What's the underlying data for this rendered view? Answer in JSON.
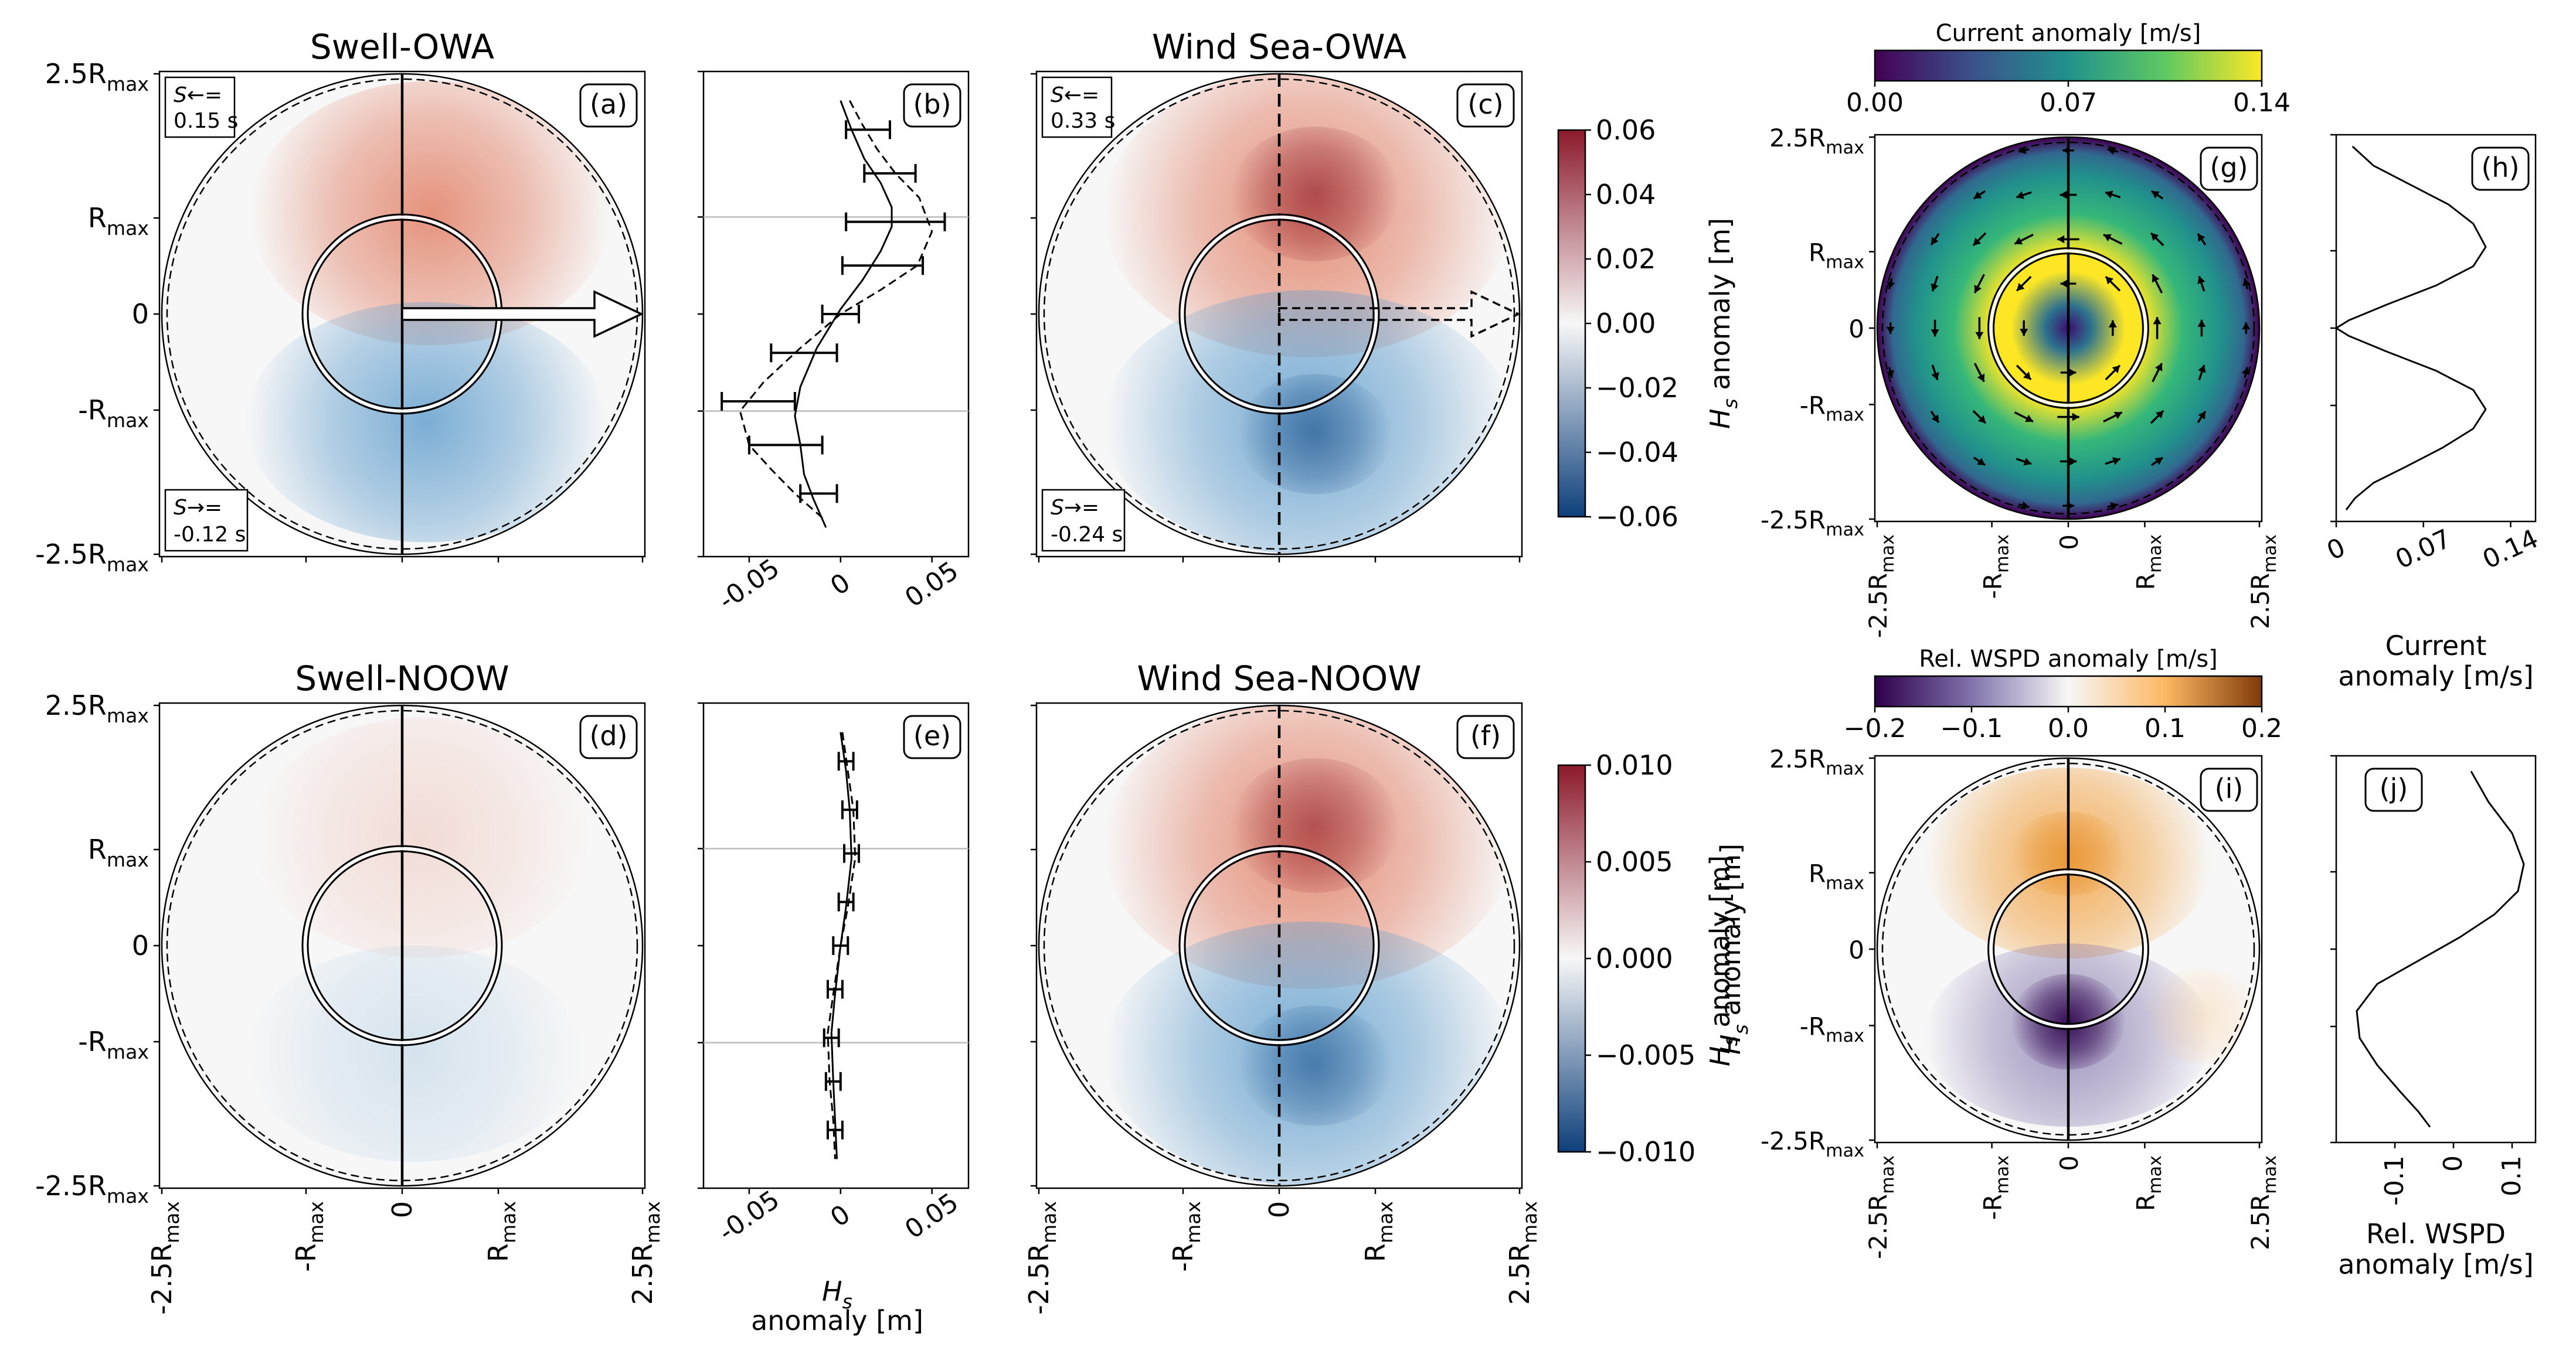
{
  "figure": {
    "tick_labels": {
      "disk_y": [
        "2.5R_max",
        "R_max",
        "0",
        "-R_max",
        "-2.5R_max"
      ],
      "disk_x": [
        "-2.5R_max",
        "-R_max",
        "0",
        "R_max",
        "2.5R_max"
      ],
      "profile_x": [
        "-0.05",
        "0",
        "0.05"
      ]
    },
    "profile_xlabel": [
      "H_s",
      "anomaly [m]"
    ]
  },
  "colors": {
    "red_strong": "#8b1a2b",
    "red": "#e07a5f",
    "white": "#f7f7f7",
    "blue": "#5d9ccc",
    "blue_strong": "#0d3f7a",
    "viridis_0": "#440154",
    "viridis_mid": "#21918c",
    "viridis_1": "#fde725",
    "puor_0": "#2d004b",
    "puor_1": "#7f3b08",
    "teal_text": "#008b8b",
    "coral_text": "#ff5722"
  },
  "chart_data": [
    {
      "panel": "(a)",
      "type": "heatmap",
      "title": "Swell-OWA",
      "field": "H_s anomaly [m]",
      "annot_upwind": {
        "label": "S←=",
        "value": "0.15 s"
      },
      "annot_downwind": {
        "label": "S→=",
        "value": "-0.12 s"
      },
      "max_positive": 0.022,
      "max_negative": -0.022,
      "arrow": "solid",
      "axis_line": "solid"
    },
    {
      "panel": "(b)",
      "type": "line",
      "x_label": "",
      "xlim": [
        -0.075,
        0.07
      ],
      "ylim": [
        -2.5,
        2.5
      ],
      "y_units": "R_max",
      "series": [
        {
          "style": "solid",
          "x": [
            0.0,
            0.006,
            0.013,
            0.022,
            0.028,
            0.028,
            0.022,
            0.012,
            0.0,
            -0.013,
            -0.022,
            -0.025,
            -0.022,
            -0.02,
            -0.015,
            -0.008
          ],
          "y": [
            2.2,
            1.9,
            1.6,
            1.35,
            1.1,
            0.9,
            0.65,
            0.35,
            0.05,
            -0.35,
            -0.75,
            -1.05,
            -1.35,
            -1.65,
            -1.9,
            -2.2
          ]
        },
        {
          "style": "dashed",
          "x": [
            0.005,
            0.012,
            0.02,
            0.03,
            0.043,
            0.05,
            0.042,
            0.022,
            0.0,
            -0.022,
            -0.042,
            -0.055,
            -0.05,
            -0.038,
            -0.025,
            -0.01
          ],
          "y": [
            2.2,
            1.95,
            1.7,
            1.45,
            1.2,
            0.85,
            0.5,
            0.25,
            0.0,
            -0.35,
            -0.7,
            -1.0,
            -1.35,
            -1.6,
            -1.85,
            -2.1
          ]
        }
      ],
      "error_bars": [
        {
          "y": 1.9,
          "x": 0.015,
          "err": 0.012
        },
        {
          "y": 1.45,
          "x": 0.027,
          "err": 0.014
        },
        {
          "y": 0.95,
          "x": 0.03,
          "err": 0.027
        },
        {
          "y": 0.5,
          "x": 0.023,
          "err": 0.022
        },
        {
          "y": 0.0,
          "x": 0.0,
          "err": 0.01
        },
        {
          "y": -0.4,
          "x": -0.02,
          "err": 0.018
        },
        {
          "y": -0.9,
          "x": -0.045,
          "err": 0.02
        },
        {
          "y": -1.35,
          "x": -0.03,
          "err": 0.02
        },
        {
          "y": -1.85,
          "x": -0.012,
          "err": 0.01
        }
      ]
    },
    {
      "panel": "(c)",
      "type": "heatmap",
      "title": "Wind Sea-OWA",
      "field": "H_s anomaly [m]",
      "annot_upwind": {
        "label": "S←=",
        "value": "0.33 s"
      },
      "annot_downwind": {
        "label": "S→=",
        "value": "-0.24 s"
      },
      "max_positive": 0.055,
      "max_negative": -0.055,
      "arrow": "dashed",
      "axis_line": "dashed",
      "colorbar": {
        "label": "H_s anomaly [m]",
        "range": [
          -0.06,
          0.06
        ],
        "ticks": [
          "0.06",
          "0.04",
          "0.02",
          "0.00",
          "−0.02",
          "−0.04",
          "−0.06"
        ]
      }
    },
    {
      "panel": "(d)",
      "type": "heatmap",
      "title": "Swell-NOOW",
      "field": "H_s anomaly [m]",
      "max_positive": 0.002,
      "max_negative": -0.002,
      "axis_line": "solid"
    },
    {
      "panel": "(e)",
      "type": "line",
      "x_label": "H_s anomaly [m]",
      "xlim": [
        -0.075,
        0.07
      ],
      "ylim": [
        -2.5,
        2.5
      ],
      "series": [
        {
          "style": "solid",
          "x": [
            0.0,
            0.003,
            0.005,
            0.006,
            0.003,
            0.0,
            -0.003,
            -0.005,
            -0.004,
            -0.003,
            -0.002
          ],
          "y": [
            2.2,
            1.8,
            1.4,
            0.9,
            0.4,
            0.0,
            -0.5,
            -0.9,
            -1.4,
            -1.8,
            -2.2
          ]
        },
        {
          "style": "dashed",
          "x": [
            0.001,
            0.004,
            0.007,
            0.008,
            0.004,
            0.0,
            -0.004,
            -0.007,
            -0.006,
            -0.004,
            -0.003
          ],
          "y": [
            2.2,
            1.8,
            1.4,
            0.9,
            0.4,
            0.0,
            -0.5,
            -0.9,
            -1.4,
            -1.8,
            -2.2
          ]
        }
      ],
      "error_bars": [
        {
          "y": 1.9,
          "x": 0.003,
          "err": 0.004
        },
        {
          "y": 1.4,
          "x": 0.005,
          "err": 0.004
        },
        {
          "y": 0.95,
          "x": 0.006,
          "err": 0.004
        },
        {
          "y": 0.45,
          "x": 0.003,
          "err": 0.004
        },
        {
          "y": 0.0,
          "x": 0.0,
          "err": 0.004
        },
        {
          "y": -0.45,
          "x": -0.003,
          "err": 0.004
        },
        {
          "y": -0.95,
          "x": -0.005,
          "err": 0.004
        },
        {
          "y": -1.4,
          "x": -0.004,
          "err": 0.004
        },
        {
          "y": -1.9,
          "x": -0.003,
          "err": 0.004
        }
      ]
    },
    {
      "panel": "(f)",
      "type": "heatmap",
      "title": "Wind Sea-NOOW",
      "field": "H_s anomaly [m]",
      "max_positive": 0.0095,
      "max_negative": -0.0095,
      "axis_line": "dashed",
      "colorbar": {
        "label": "H_s anomaly [m]",
        "range": [
          -0.01,
          0.01
        ],
        "ticks": [
          "0.010",
          "0.005",
          "0.000",
          "−0.005",
          "−0.010"
        ]
      }
    },
    {
      "panel": "(g)",
      "type": "heatmap",
      "field": "Current anomaly [m/s]",
      "colorbar": {
        "label": "Current anomaly [m/s]",
        "range": [
          0.0,
          0.14
        ],
        "ticks": [
          "0.00",
          "0.07",
          "0.14"
        ]
      },
      "max_value": 0.13,
      "quiver": "counterclockwise rotation"
    },
    {
      "panel": "(h)",
      "type": "line",
      "x_label": "Current anomaly [m/s]",
      "x_ticks": [
        "0",
        "0.07",
        "0.14"
      ],
      "xlim": [
        0,
        0.16
      ],
      "ylim": [
        -2.5,
        2.5
      ],
      "series": [
        {
          "style": "solid",
          "x": [
            0.013,
            0.03,
            0.06,
            0.09,
            0.11,
            0.12,
            0.11,
            0.08,
            0.04,
            0.01,
            0.0,
            0.01,
            0.04,
            0.08,
            0.11,
            0.12,
            0.11,
            0.085,
            0.055,
            0.03,
            0.015,
            0.008
          ],
          "y": [
            2.35,
            2.1,
            1.85,
            1.6,
            1.35,
            1.05,
            0.8,
            0.55,
            0.3,
            0.1,
            0.0,
            -0.1,
            -0.3,
            -0.55,
            -0.8,
            -1.05,
            -1.3,
            -1.55,
            -1.8,
            -2.0,
            -2.2,
            -2.35
          ]
        }
      ]
    },
    {
      "panel": "(i)",
      "type": "heatmap",
      "field": "Rel. WSPD anomaly [m/s]",
      "colorbar": {
        "label": "Rel. WSPD anomaly [m/s]",
        "range": [
          -0.2,
          0.2
        ],
        "ticks": [
          "−0.2",
          "−0.1",
          "0.0",
          "0.1",
          "0.2"
        ]
      },
      "max_positive": 0.13,
      "max_negative": -0.18
    },
    {
      "panel": "(j)",
      "type": "line",
      "x_label": "Rel. WSPD anomaly [m/s]",
      "x_ticks": [
        "-0.1",
        "0",
        "0.1"
      ],
      "xlim": [
        -0.2,
        0.14
      ],
      "ylim": [
        -2.5,
        2.5
      ],
      "series": [
        {
          "style": "solid",
          "x": [
            0.03,
            0.06,
            0.1,
            0.12,
            0.11,
            0.07,
            0.01,
            -0.06,
            -0.13,
            -0.165,
            -0.16,
            -0.13,
            -0.09,
            -0.06,
            -0.04
          ],
          "y": [
            2.3,
            1.9,
            1.5,
            1.1,
            0.75,
            0.45,
            0.15,
            -0.15,
            -0.45,
            -0.8,
            -1.15,
            -1.5,
            -1.85,
            -2.1,
            -2.3
          ]
        }
      ]
    }
  ]
}
